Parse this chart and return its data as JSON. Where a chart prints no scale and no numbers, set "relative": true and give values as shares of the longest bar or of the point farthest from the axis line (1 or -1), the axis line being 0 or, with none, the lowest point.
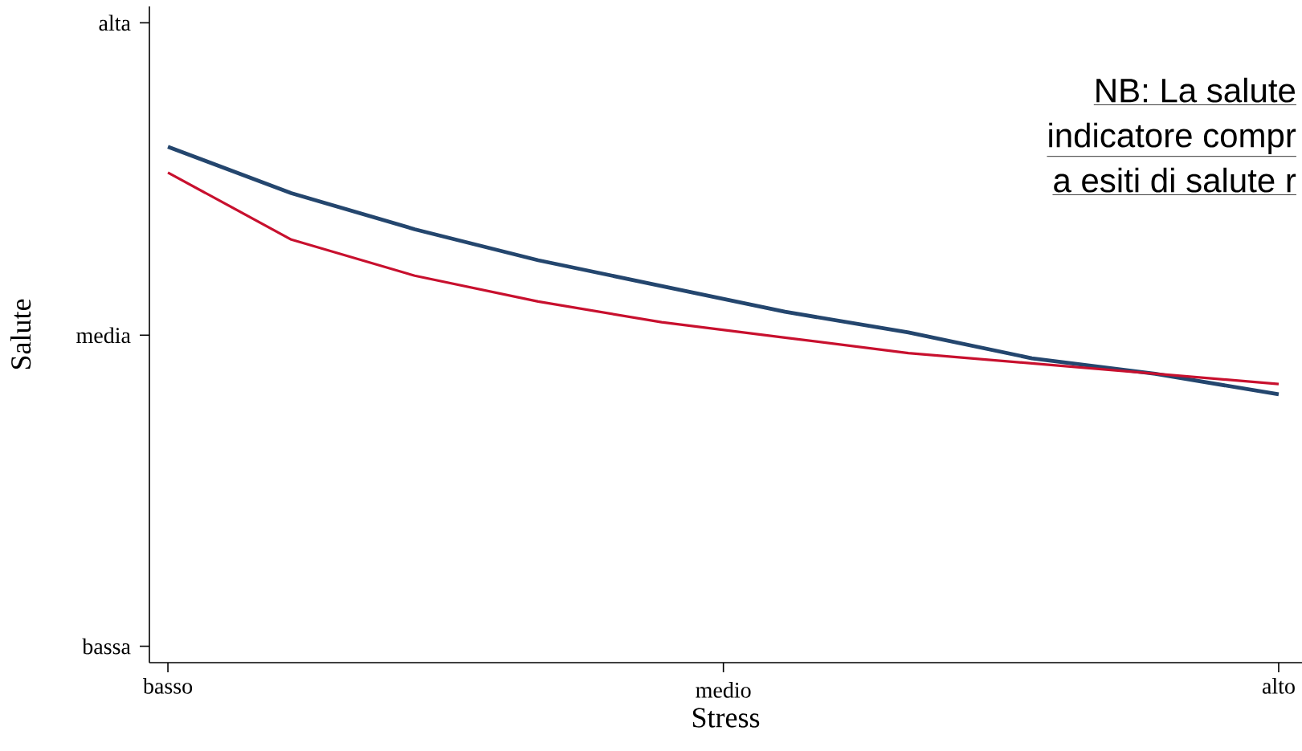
{
  "chart_data": {
    "type": "line",
    "xlabel": "Stress",
    "ylabel": "Salute",
    "relative": true,
    "annotations": [
      "NB: La salute",
      "indicatore compr",
      "a esiti di salute r",
      "alta",
      "media",
      "bassa",
      "medio"
    ],
    "categories": [
      "basso",
      null,
      null,
      null,
      null,
      null,
      null,
      null,
      null,
      "alto"
    ],
    "series": [
      {
        "color": "#24466e",
        "values": [
          1,
          0.91,
          0.84,
          0.78,
          0.73,
          0.68,
          0.64,
          0.59,
          0.56,
          0.52
        ]
      },
      {
        "color": "#c8102e",
        "values": [
          0.95,
          0.82,
          0.75,
          0.7,
          0.66,
          0.63,
          0.6,
          0.58,
          0.56,
          0.54
        ]
      }
    ],
    "marker": "none",
    "line_style": "solid"
  }
}
